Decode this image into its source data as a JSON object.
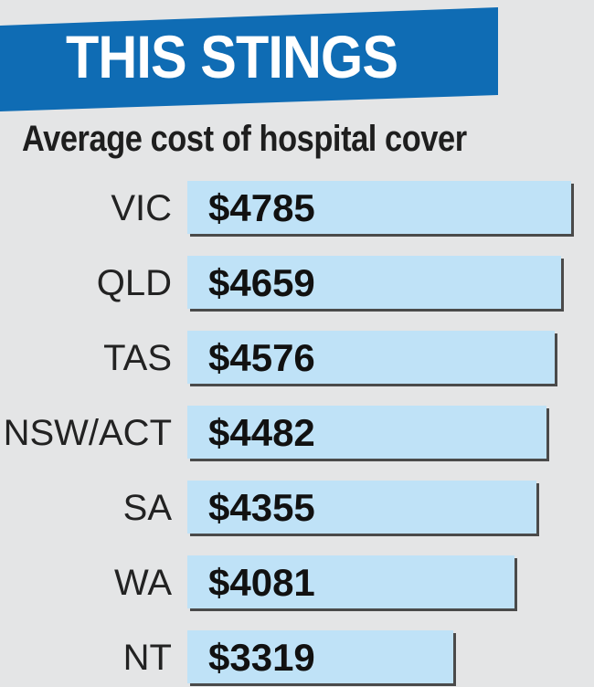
{
  "header": {
    "banner_text": "THIS STINGS",
    "subtitle": "Average cost of hospital cover"
  },
  "colors": {
    "banner": "#0f6cb4",
    "bar_fill": "#bfe2f7",
    "bar_shadow": "#4a4a4a",
    "background": "#e4e5e6"
  },
  "chart_data": {
    "type": "bar",
    "orientation": "horizontal",
    "title": "Average cost of hospital cover",
    "categories": [
      "VIC",
      "QLD",
      "TAS",
      "NSW/ACT",
      "SA",
      "WA",
      "NT"
    ],
    "values": [
      4785,
      4659,
      4576,
      4482,
      4355,
      4081,
      3319
    ],
    "value_labels": [
      "$4785",
      "$4659",
      "$4576",
      "$4482",
      "$4355",
      "$4081",
      "$3319"
    ],
    "xlim": [
      0,
      4785
    ],
    "grid": false,
    "legend": "none"
  }
}
